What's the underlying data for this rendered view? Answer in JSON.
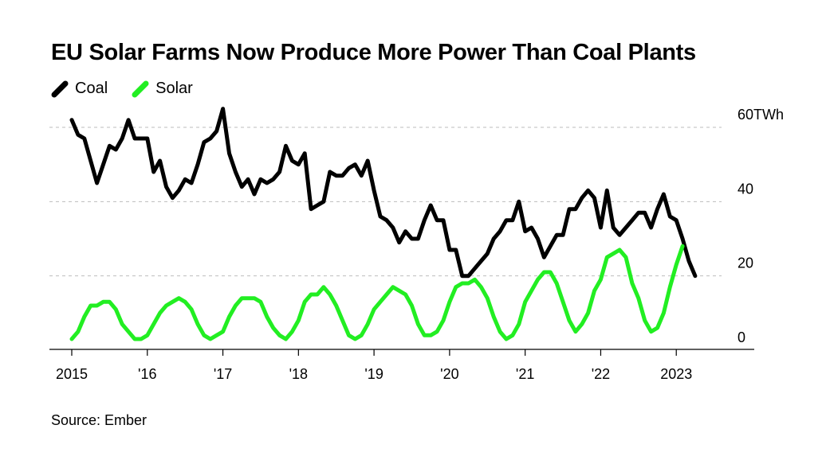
{
  "title": "EU Solar Farms Now Produce More Power Than Coal Plants",
  "source": "Source: Ember",
  "legend": [
    {
      "label": "Coal",
      "color": "#000000"
    },
    {
      "label": "Solar",
      "color": "#22ee22"
    }
  ],
  "chart_data": {
    "type": "line",
    "title": "EU Solar Farms Now Produce More Power Than Coal Plants",
    "ylabel": "",
    "xlabel": "",
    "unit": "TWh",
    "ylim": [
      0,
      60
    ],
    "xlim": [
      2015,
      2024
    ],
    "yticks": [
      {
        "value": 0,
        "label": "0"
      },
      {
        "value": 20,
        "label": "20"
      },
      {
        "value": 40,
        "label": "40"
      },
      {
        "value": 60,
        "label": "60TWh"
      }
    ],
    "xticks": [
      {
        "value": 2015,
        "label": "2015"
      },
      {
        "value": 2016,
        "label": "'16"
      },
      {
        "value": 2017,
        "label": "'17"
      },
      {
        "value": 2018,
        "label": "'18"
      },
      {
        "value": 2019,
        "label": "'19"
      },
      {
        "value": 2020,
        "label": "'20"
      },
      {
        "value": 2021,
        "label": "'21"
      },
      {
        "value": 2022,
        "label": "'22"
      },
      {
        "value": 2023,
        "label": "2023"
      }
    ],
    "grid": true,
    "legend_position": "top-left",
    "series": [
      {
        "name": "Coal",
        "color": "#000000",
        "start": "2015-01",
        "frequency": "monthly",
        "values": [
          62,
          58,
          57,
          51,
          45,
          50,
          55,
          54,
          57,
          62,
          57,
          57,
          57,
          48,
          51,
          44,
          41,
          43,
          46,
          45,
          50,
          56,
          57,
          59,
          65,
          53,
          48,
          44,
          46,
          42,
          46,
          45,
          46,
          48,
          55,
          51,
          50,
          53,
          38,
          39,
          40,
          48,
          47,
          47,
          49,
          50,
          47,
          51,
          43,
          36,
          35,
          33,
          29,
          32,
          30,
          30,
          35,
          39,
          35,
          35,
          27,
          27,
          20,
          20,
          22,
          24,
          26,
          30,
          32,
          35,
          35,
          40,
          32,
          33,
          30,
          25,
          28,
          31,
          31,
          38,
          38,
          41,
          43,
          41,
          33,
          43,
          33,
          31,
          33,
          35,
          37,
          37,
          33,
          38,
          42,
          36,
          35,
          30,
          24,
          20
        ]
      },
      {
        "name": "Solar",
        "color": "#22ee22",
        "start": "2015-01",
        "frequency": "monthly",
        "values": [
          3,
          5,
          9,
          12,
          12,
          13,
          13,
          11,
          7,
          5,
          3,
          3,
          4,
          7,
          10,
          12,
          13,
          14,
          13,
          11,
          7,
          4,
          3,
          4,
          5,
          9,
          12,
          14,
          14,
          14,
          13,
          9,
          6,
          4,
          3,
          5,
          8,
          13,
          15,
          15,
          17,
          15,
          12,
          8,
          4,
          3,
          4,
          7,
          11,
          13,
          15,
          17,
          16,
          15,
          12,
          7,
          4,
          4,
          5,
          8,
          13,
          17,
          18,
          18,
          19,
          17,
          14,
          9,
          5,
          3,
          4,
          7,
          13,
          16,
          19,
          21,
          21,
          18,
          13,
          8,
          5,
          7,
          10,
          16,
          19,
          25,
          26,
          27,
          25,
          18,
          14,
          8,
          5,
          6,
          10,
          17,
          23,
          28
        ]
      }
    ]
  }
}
